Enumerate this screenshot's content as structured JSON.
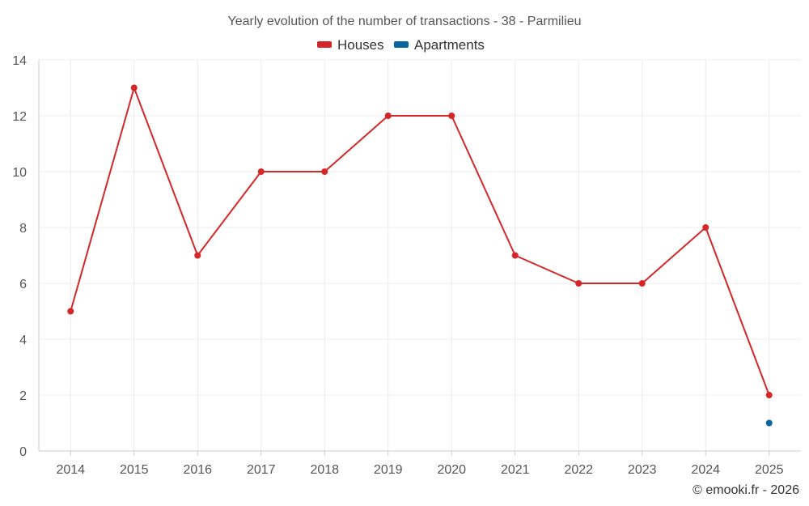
{
  "chart_data": {
    "type": "line",
    "title": "Yearly evolution of the number of transactions - 38 - Parmilieu",
    "categories": [
      "2014",
      "2015",
      "2016",
      "2017",
      "2018",
      "2019",
      "2020",
      "2021",
      "2022",
      "2023",
      "2024",
      "2025"
    ],
    "series": [
      {
        "name": "Houses",
        "color": "#d62728",
        "values": [
          5,
          13,
          7,
          10,
          10,
          12,
          12,
          7,
          6,
          6,
          8,
          2
        ]
      },
      {
        "name": "Apartments",
        "color": "#0a66a0",
        "values": [
          null,
          null,
          null,
          null,
          null,
          null,
          null,
          null,
          null,
          null,
          null,
          1
        ]
      }
    ],
    "ylim": [
      0,
      14
    ],
    "yticks": [
      0,
      2,
      4,
      6,
      8,
      10,
      12,
      14
    ],
    "xlabel": "",
    "ylabel": "",
    "grid": true,
    "legend_position": "top-center"
  },
  "credit": "© emooki.fr - 2026"
}
